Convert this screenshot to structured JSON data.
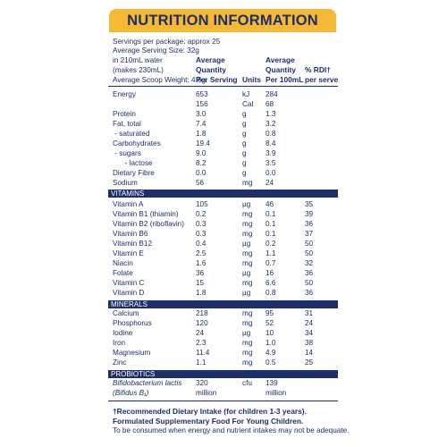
{
  "title": "NUTRITION INFORMATION",
  "info": {
    "servings": "Servings per package: approx 25",
    "serving_size": "Average Serving Size: 32g",
    "water_1": "in 210mL water",
    "water_2": "(makes 230mL)",
    "scoop": "Average Scoop Weight: 4.6g"
  },
  "headers": {
    "avg_qty_serving": [
      "Average",
      "Quantity",
      "Per Serving"
    ],
    "units": "Units",
    "avg_qty_100ml": [
      "Average",
      "Quantity",
      "Per 100mL"
    ],
    "rdi": [
      "% RDI†",
      "per serve"
    ]
  },
  "nutrients": [
    {
      "name": "Energy",
      "serving": "653",
      "unit": "kJ",
      "per100": "284",
      "rdi": ""
    },
    {
      "name": "",
      "serving": "156",
      "unit": "Cal",
      "per100": "68",
      "rdi": ""
    },
    {
      "name": "Protein",
      "serving": "3.0",
      "unit": "g",
      "per100": "1.3",
      "rdi": ""
    },
    {
      "name": "Fat, total",
      "serving": "7.4",
      "unit": "g",
      "per100": "3.2",
      "rdi": ""
    },
    {
      "name": " - saturated",
      "serving": "1.8",
      "unit": "g",
      "per100": "0.8",
      "rdi": ""
    },
    {
      "name": "Carbohydrates",
      "serving": "19.4",
      "unit": "g",
      "per100": "8.4",
      "rdi": ""
    },
    {
      "name": " - sugars",
      "serving": "9.0",
      "unit": "g",
      "per100": "3.9",
      "rdi": ""
    },
    {
      "name": "      - lactose",
      "serving": "8.2",
      "unit": "g",
      "per100": "3.5",
      "rdi": ""
    },
    {
      "name": "Dietary Fibre",
      "serving": "0.0",
      "unit": "g",
      "per100": "0.0",
      "rdi": ""
    },
    {
      "name": "Sodium",
      "serving": "56",
      "unit": "mg",
      "per100": "24",
      "rdi": ""
    }
  ],
  "vitamins_label": "VITAMINS",
  "vitamins": [
    {
      "name": "Vitamin A",
      "serving": "105",
      "unit": "µg",
      "per100": "46",
      "rdi": "35"
    },
    {
      "name": "Vitamin B1 (thiamin)",
      "serving": "0.2",
      "unit": "mg",
      "per100": "0.1",
      "rdi": "39"
    },
    {
      "name": "Vitamin B2 (riboflavin)",
      "serving": "0.3",
      "unit": "mg",
      "per100": "0.1",
      "rdi": "36"
    },
    {
      "name": "Vitamin B6",
      "serving": "0.3",
      "unit": "mg",
      "per100": "0.1",
      "rdi": "37"
    },
    {
      "name": "Vitamin B12",
      "serving": "0.4",
      "unit": "µg",
      "per100": "0.2",
      "rdi": "50"
    },
    {
      "name": "Vitamin E",
      "serving": "2.5",
      "unit": "mg",
      "per100": "1.1",
      "rdi": "50"
    },
    {
      "name": "Niacin",
      "serving": "1.6",
      "unit": "mg",
      "per100": "0.7",
      "rdi": "32"
    },
    {
      "name": "Folate",
      "serving": "36",
      "unit": "µg",
      "per100": "16",
      "rdi": "36"
    },
    {
      "name": "Vitamin C",
      "serving": "15",
      "unit": "mg",
      "per100": "6.6",
      "rdi": "50"
    },
    {
      "name": "Vitamin D",
      "serving": "1.8",
      "unit": "µg",
      "per100": "0.8",
      "rdi": "36"
    }
  ],
  "minerals_label": "MINERALS",
  "minerals": [
    {
      "name": "Calcium",
      "serving": "218",
      "unit": "mg",
      "per100": "95",
      "rdi": "31"
    },
    {
      "name": "Phosphorus",
      "serving": "120",
      "unit": "mg",
      "per100": "52",
      "rdi": "24"
    },
    {
      "name": "Iodine",
      "serving": "24",
      "unit": "µg",
      "per100": "10",
      "rdi": "34"
    },
    {
      "name": "Iron",
      "serving": "2.3",
      "unit": "mg",
      "per100": "1.0",
      "rdi": "38"
    },
    {
      "name": "Magnesium",
      "serving": "11.4",
      "unit": "mg",
      "per100": "4.9",
      "rdi": "14"
    },
    {
      "name": "Zinc",
      "serving": "1.1",
      "unit": "mg",
      "per100": "0.5",
      "rdi": "25"
    }
  ],
  "probiotics_label": "PROBIOTICS",
  "probiotics": {
    "name_1": "Bifidobacterium lactis",
    "name_2": "(Bifidus B₁)",
    "serving_1": "320",
    "serving_2": "million",
    "unit": "cfu",
    "per100_1": "139",
    "per100_2": "million"
  },
  "footnotes": {
    "rdi_note": "†Recommended Dietary Intake (for children 1-3 years).",
    "formulated": "Formulated Supplementary Food For Young Children.",
    "consume": "To be consumed when energy and nutrient intakes may not be adequate."
  },
  "colors": {
    "navy": "#1c2f6b",
    "banner": "#f5b935"
  }
}
